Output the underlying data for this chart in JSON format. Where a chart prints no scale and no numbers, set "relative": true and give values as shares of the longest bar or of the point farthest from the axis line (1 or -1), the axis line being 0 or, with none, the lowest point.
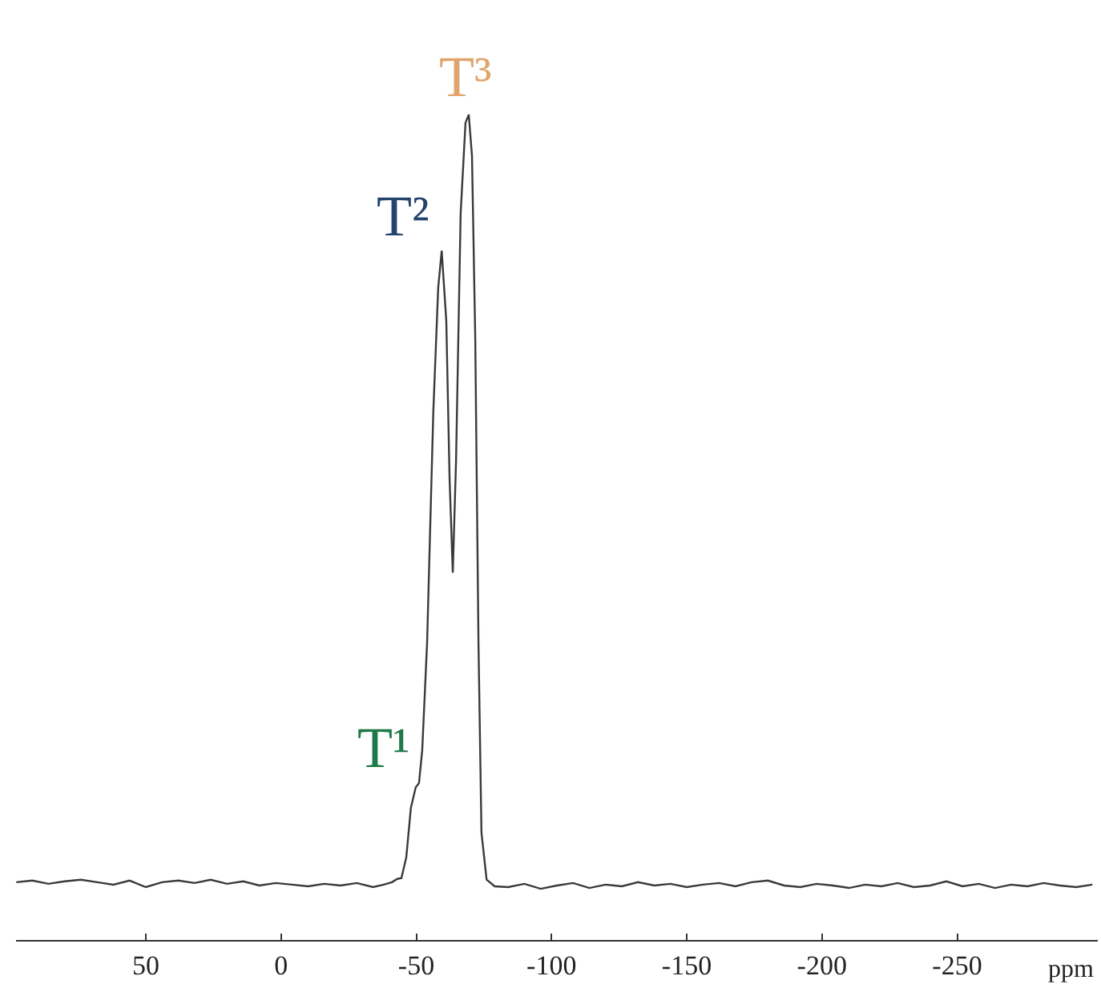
{
  "chart_data": {
    "type": "line",
    "relative": true,
    "xlabel": "ppm",
    "x": [
      97.9,
      92,
      86,
      80,
      74,
      68,
      62,
      56,
      50,
      44,
      38,
      32,
      26,
      20,
      14,
      8,
      2,
      -4,
      -10,
      -16,
      -22,
      -28,
      -34,
      -38,
      -41,
      -43,
      -44.5,
      -46.3,
      -48,
      -49.8,
      -51,
      -52.2,
      -54,
      -56.3,
      -58.1,
      -59.4,
      -61.1,
      -62.3,
      -63.5,
      -64.7,
      -66.4,
      -68.2,
      -69.4,
      -70.6,
      -71.8,
      -73,
      -74.1,
      -76,
      -79,
      -84,
      -90,
      -96,
      -102,
      -108,
      -114,
      -120,
      -126,
      -132,
      -138,
      -144,
      -150,
      -156,
      -162,
      -168,
      -174,
      -180,
      -186,
      -192,
      -198,
      -204,
      -210,
      -216,
      -222,
      -228,
      -234,
      -240,
      -246,
      -252,
      -258,
      -264,
      -270,
      -276,
      -282,
      -288,
      -294,
      -300
    ],
    "values": [
      0.07,
      0.072,
      0.068,
      0.071,
      0.073,
      0.07,
      0.067,
      0.072,
      0.064,
      0.07,
      0.072,
      0.069,
      0.073,
      0.068,
      0.071,
      0.066,
      0.069,
      0.067,
      0.065,
      0.068,
      0.066,
      0.069,
      0.064,
      0.067,
      0.07,
      0.074,
      0.075,
      0.1,
      0.16,
      0.185,
      0.19,
      0.23,
      0.36,
      0.64,
      0.79,
      0.835,
      0.75,
      0.56,
      0.445,
      0.58,
      0.88,
      0.99,
      1,
      0.95,
      0.73,
      0.36,
      0.13,
      0.073,
      0.065,
      0.064,
      0.068,
      0.062,
      0.066,
      0.069,
      0.063,
      0.067,
      0.065,
      0.07,
      0.066,
      0.068,
      0.064,
      0.067,
      0.069,
      0.065,
      0.07,
      0.072,
      0.066,
      0.064,
      0.068,
      0.066,
      0.063,
      0.067,
      0.065,
      0.069,
      0.064,
      0.066,
      0.071,
      0.065,
      0.068,
      0.063,
      0.067,
      0.065,
      0.069,
      0.066,
      0.064,
      0.067
    ],
    "color": "#3a3a3a",
    "xlim": [
      98,
      -302
    ],
    "xticks": [
      50,
      0,
      -50,
      -100,
      -150,
      -200,
      -250
    ],
    "grid": false,
    "legend": false,
    "marker": "none",
    "line_style": "solid",
    "tick_labels": "x",
    "annotations": [
      {
        "text": "T¹",
        "x": -51,
        "y": 0.19
      },
      {
        "text": "T²",
        "x": -59.4,
        "y": 0.835
      },
      {
        "text": "T³",
        "x": -69.4,
        "y": 1
      }
    ]
  }
}
